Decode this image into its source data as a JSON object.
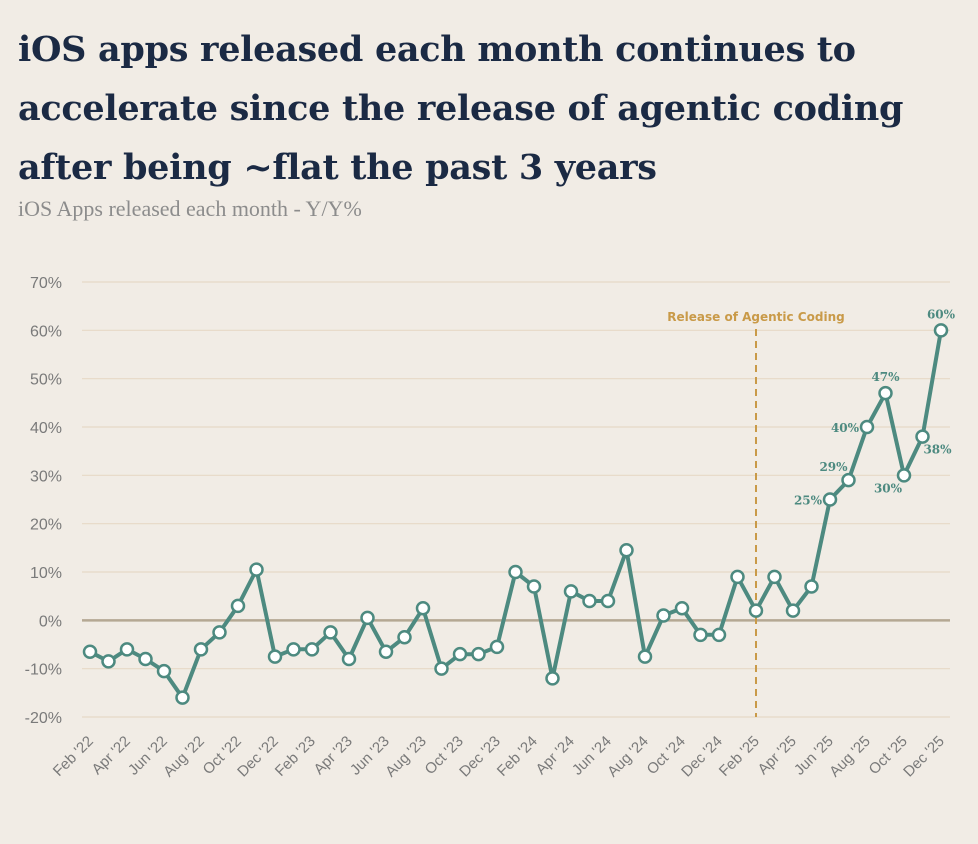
{
  "header": {
    "title_line1": "iOS apps released each month continues to",
    "title_line2": "accelerate since the release of agentic coding",
    "title_line3": "after being ~flat the past 3 years",
    "subtitle": "iOS Apps released each month - Y/Y%"
  },
  "chart_data": {
    "type": "line",
    "title": "iOS apps released each month continues to accelerate since the release of agentic coding after being ~flat the past 3 years",
    "subtitle": "iOS Apps released each month - Y/Y%",
    "xlabel": "",
    "ylabel": "",
    "ylim": [
      -20,
      70
    ],
    "yticks": [
      70,
      60,
      50,
      40,
      30,
      20,
      10,
      0,
      -10,
      -20
    ],
    "ytick_labels": [
      "70%",
      "60%",
      "50%",
      "40%",
      "30%",
      "20%",
      "10%",
      "0%",
      "-10%",
      "-20%"
    ],
    "grid": true,
    "categories": [
      "Feb '22",
      "Mar '22",
      "Apr '22",
      "May '22",
      "Jun '22",
      "Jul '22",
      "Aug '22",
      "Sep '22",
      "Oct '22",
      "Nov '22",
      "Dec '22",
      "Jan '23",
      "Feb '23",
      "Mar '23",
      "Apr '23",
      "May '23",
      "Jun '23",
      "Jul '23",
      "Aug '23",
      "Sep '23",
      "Oct '23",
      "Nov '23",
      "Dec '23",
      "Jan '24",
      "Feb '24",
      "Mar '24",
      "Apr '24",
      "May '24",
      "Jun '24",
      "Jul '24",
      "Aug '24",
      "Sep '24",
      "Oct '24",
      "Nov '24",
      "Dec '24",
      "Jan '25",
      "Feb '25",
      "Mar '25",
      "Apr '25",
      "May '25",
      "Jun '25",
      "Jul '25",
      "Aug '25",
      "Sep '25",
      "Oct '25",
      "Nov '25",
      "Dec '25"
    ],
    "xtick_labels": [
      "Feb '22",
      "Apr '22",
      "Jun '22",
      "Aug '22",
      "Oct '22",
      "Dec '22",
      "Feb '23",
      "Apr '23",
      "Jun '23",
      "Aug '23",
      "Oct '23",
      "Dec '23",
      "Feb '24",
      "Apr '24",
      "Jun '24",
      "Aug '24",
      "Oct '24",
      "Dec '24",
      "Feb '25",
      "Apr '25",
      "Jun '25",
      "Aug '25",
      "Oct '25",
      "Dec '25"
    ],
    "series": [
      {
        "name": "iOS Apps released each month - Y/Y%",
        "color": "#4d8a80",
        "values": [
          -6.5,
          -8.5,
          -6,
          -8,
          -10.5,
          -16,
          -6,
          -2.5,
          3,
          10.5,
          -7.5,
          -6,
          -6,
          -2.5,
          -8,
          0.5,
          -6.5,
          -3.5,
          2.5,
          -10,
          -7,
          -7,
          -5.5,
          10,
          7,
          -12,
          6,
          4,
          4,
          14.5,
          -7.5,
          1,
          2.5,
          -3,
          -3,
          9,
          2,
          9,
          2,
          7,
          25,
          29,
          40,
          47,
          30,
          38,
          60
        ]
      }
    ],
    "data_labels": [
      {
        "index": 40,
        "text": "25%",
        "pos": "left"
      },
      {
        "index": 41,
        "text": "29%",
        "pos": "above-left"
      },
      {
        "index": 42,
        "text": "40%",
        "pos": "left"
      },
      {
        "index": 43,
        "text": "47%",
        "pos": "above"
      },
      {
        "index": 44,
        "text": "30%",
        "pos": "left-below"
      },
      {
        "index": 45,
        "text": "38%",
        "pos": "right-below"
      },
      {
        "index": 46,
        "text": "60%",
        "pos": "above"
      }
    ],
    "annotations": [
      {
        "type": "vline",
        "at_index": 36,
        "label": "Release of Agentic Coding",
        "color": "#c99a48"
      }
    ],
    "colors": {
      "line": "#4d8a80",
      "grid": "#e6d9c6",
      "zero_line": "#b5a893",
      "annotation": "#c99a48",
      "background": "#f1ece5"
    }
  }
}
